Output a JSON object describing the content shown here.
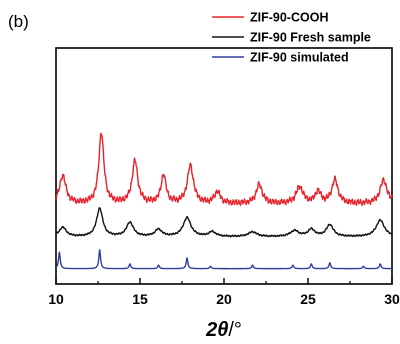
{
  "panel_label": "(b)",
  "chart_data": {
    "type": "line",
    "title": "",
    "xlabel": "2θ/°",
    "xlabel_parts": {
      "var": "2θ",
      "unit": "/°"
    },
    "ylabel": "",
    "xlim": [
      10,
      30
    ],
    "ylim": [
      0,
      1
    ],
    "x_ticks": [
      10,
      15,
      20,
      25,
      30
    ],
    "y_ticks_shown": false,
    "grid": false,
    "legend_position": "top-right",
    "series": [
      {
        "name": "ZIF-90-COOH",
        "color": "#e8222a",
        "baseline": 0.34,
        "noise": 0.015,
        "peaks": [
          {
            "x": 10.4,
            "h": 0.12,
            "w": 0.22
          },
          {
            "x": 12.7,
            "h": 0.3,
            "w": 0.18
          },
          {
            "x": 14.7,
            "h": 0.18,
            "w": 0.2
          },
          {
            "x": 16.4,
            "h": 0.12,
            "w": 0.18
          },
          {
            "x": 18.0,
            "h": 0.16,
            "w": 0.22
          },
          {
            "x": 19.6,
            "h": 0.05,
            "w": 0.2
          },
          {
            "x": 22.1,
            "h": 0.08,
            "w": 0.22
          },
          {
            "x": 24.5,
            "h": 0.07,
            "w": 0.25
          },
          {
            "x": 25.6,
            "h": 0.05,
            "w": 0.2
          },
          {
            "x": 26.6,
            "h": 0.1,
            "w": 0.22
          },
          {
            "x": 29.5,
            "h": 0.1,
            "w": 0.25
          }
        ]
      },
      {
        "name": "ZIF-90 Fresh sample",
        "color": "#111111",
        "baseline": 0.2,
        "noise": 0.004,
        "peaks": [
          {
            "x": 10.4,
            "h": 0.04,
            "w": 0.25
          },
          {
            "x": 12.6,
            "h": 0.12,
            "w": 0.22
          },
          {
            "x": 14.4,
            "h": 0.06,
            "w": 0.25
          },
          {
            "x": 16.1,
            "h": 0.03,
            "w": 0.25
          },
          {
            "x": 17.8,
            "h": 0.08,
            "w": 0.28
          },
          {
            "x": 19.3,
            "h": 0.02,
            "w": 0.25
          },
          {
            "x": 21.7,
            "h": 0.02,
            "w": 0.3
          },
          {
            "x": 24.2,
            "h": 0.025,
            "w": 0.3
          },
          {
            "x": 25.2,
            "h": 0.03,
            "w": 0.25
          },
          {
            "x": 26.3,
            "h": 0.05,
            "w": 0.25
          },
          {
            "x": 29.3,
            "h": 0.07,
            "w": 0.3
          }
        ]
      },
      {
        "name": "ZIF-90 simulated",
        "color": "#2e3f9e",
        "baseline": 0.065,
        "noise": 0.0,
        "peaks": [
          {
            "x": 10.2,
            "h": 0.07,
            "w": 0.06
          },
          {
            "x": 12.6,
            "h": 0.08,
            "w": 0.06
          },
          {
            "x": 14.4,
            "h": 0.02,
            "w": 0.06
          },
          {
            "x": 16.1,
            "h": 0.015,
            "w": 0.06
          },
          {
            "x": 17.8,
            "h": 0.045,
            "w": 0.06
          },
          {
            "x": 19.2,
            "h": 0.01,
            "w": 0.06
          },
          {
            "x": 21.7,
            "h": 0.015,
            "w": 0.06
          },
          {
            "x": 24.1,
            "h": 0.015,
            "w": 0.06
          },
          {
            "x": 25.2,
            "h": 0.02,
            "w": 0.06
          },
          {
            "x": 26.3,
            "h": 0.025,
            "w": 0.06
          },
          {
            "x": 28.3,
            "h": 0.01,
            "w": 0.06
          },
          {
            "x": 29.3,
            "h": 0.02,
            "w": 0.06
          }
        ]
      }
    ]
  }
}
